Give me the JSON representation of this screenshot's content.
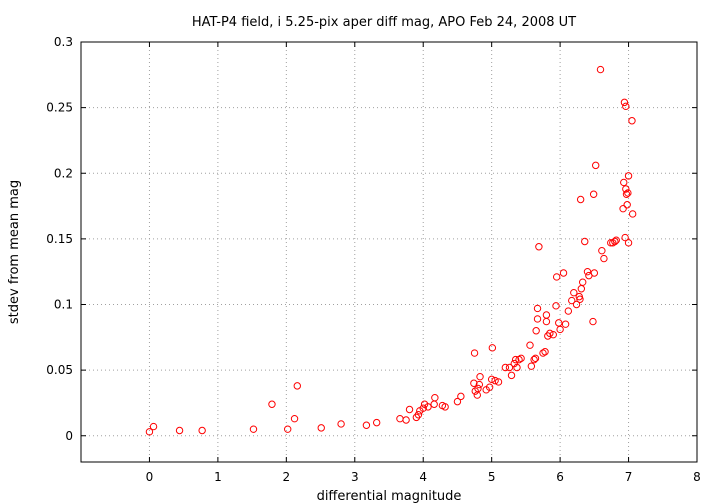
{
  "chart_data": {
    "type": "scatter",
    "title": "HAT-P4 field, i 5.25-pix aper diff mag, APO Feb 24, 2008 UT",
    "xlabel": "differential magnitude",
    "ylabel": "stdev from mean mag",
    "xlim": [
      -1,
      8
    ],
    "ylim": [
      -0.02,
      0.3
    ],
    "xticks": [
      0,
      1,
      2,
      3,
      4,
      5,
      6,
      7,
      8
    ],
    "yticks": [
      0,
      0.05,
      0.1,
      0.15,
      0.2,
      0.25,
      0.3
    ],
    "xtick_labels": [
      "0",
      "1",
      "2",
      "3",
      "4",
      "5",
      "6",
      "7",
      "8"
    ],
    "ytick_labels": [
      "0",
      "0.05",
      "0.1",
      "0.15",
      "0.2",
      "0.25",
      "0.3"
    ],
    "grid": true,
    "marker_color": "#ff0000",
    "series": [
      {
        "points": [
          [
            0.0,
            0.003
          ],
          [
            0.06,
            0.007
          ],
          [
            0.44,
            0.004
          ],
          [
            0.77,
            0.004
          ],
          [
            1.52,
            0.005
          ],
          [
            1.79,
            0.024
          ],
          [
            2.02,
            0.005
          ],
          [
            2.12,
            0.013
          ],
          [
            2.16,
            0.038
          ],
          [
            2.51,
            0.006
          ],
          [
            2.8,
            0.009
          ],
          [
            3.17,
            0.008
          ],
          [
            3.32,
            0.01
          ],
          [
            3.66,
            0.013
          ],
          [
            3.75,
            0.012
          ],
          [
            3.8,
            0.02
          ],
          [
            3.9,
            0.014
          ],
          [
            3.93,
            0.016
          ],
          [
            3.95,
            0.019
          ],
          [
            4.0,
            0.021
          ],
          [
            4.02,
            0.024
          ],
          [
            4.07,
            0.022
          ],
          [
            4.16,
            0.024
          ],
          [
            4.17,
            0.029
          ],
          [
            4.28,
            0.023
          ],
          [
            4.32,
            0.022
          ],
          [
            4.5,
            0.026
          ],
          [
            4.55,
            0.03
          ],
          [
            4.74,
            0.04
          ],
          [
            4.75,
            0.063
          ],
          [
            4.76,
            0.034
          ],
          [
            4.79,
            0.031
          ],
          [
            4.8,
            0.036
          ],
          [
            4.82,
            0.039
          ],
          [
            4.83,
            0.045
          ],
          [
            4.92,
            0.035
          ],
          [
            4.97,
            0.037
          ],
          [
            5.0,
            0.043
          ],
          [
            5.01,
            0.067
          ],
          [
            5.05,
            0.042
          ],
          [
            5.1,
            0.041
          ],
          [
            5.2,
            0.052
          ],
          [
            5.26,
            0.052
          ],
          [
            5.29,
            0.046
          ],
          [
            5.33,
            0.055
          ],
          [
            5.35,
            0.058
          ],
          [
            5.37,
            0.052
          ],
          [
            5.4,
            0.058
          ],
          [
            5.43,
            0.059
          ],
          [
            5.56,
            0.069
          ],
          [
            5.58,
            0.053
          ],
          [
            5.62,
            0.058
          ],
          [
            5.64,
            0.059
          ],
          [
            5.65,
            0.08
          ],
          [
            5.67,
            0.089
          ],
          [
            5.67,
            0.097
          ],
          [
            5.69,
            0.144
          ],
          [
            5.75,
            0.063
          ],
          [
            5.78,
            0.064
          ],
          [
            5.8,
            0.087
          ],
          [
            5.8,
            0.092
          ],
          [
            5.82,
            0.076
          ],
          [
            5.85,
            0.078
          ],
          [
            5.9,
            0.077
          ],
          [
            5.94,
            0.099
          ],
          [
            5.95,
            0.121
          ],
          [
            5.98,
            0.086
          ],
          [
            6.0,
            0.081
          ],
          [
            6.05,
            0.124
          ],
          [
            6.08,
            0.085
          ],
          [
            6.12,
            0.095
          ],
          [
            6.17,
            0.103
          ],
          [
            6.2,
            0.109
          ],
          [
            6.24,
            0.1
          ],
          [
            6.28,
            0.106
          ],
          [
            6.29,
            0.104
          ],
          [
            6.3,
            0.18
          ],
          [
            6.31,
            0.112
          ],
          [
            6.33,
            0.117
          ],
          [
            6.36,
            0.148
          ],
          [
            6.4,
            0.125
          ],
          [
            6.42,
            0.122
          ],
          [
            6.48,
            0.087
          ],
          [
            6.49,
            0.184
          ],
          [
            6.5,
            0.124
          ],
          [
            6.52,
            0.206
          ],
          [
            6.59,
            0.279
          ],
          [
            6.61,
            0.141
          ],
          [
            6.64,
            0.135
          ],
          [
            6.74,
            0.147
          ],
          [
            6.77,
            0.147
          ],
          [
            6.8,
            0.148
          ],
          [
            6.82,
            0.149
          ],
          [
            6.92,
            0.173
          ],
          [
            6.93,
            0.193
          ],
          [
            6.94,
            0.254
          ],
          [
            6.95,
            0.151
          ],
          [
            6.96,
            0.251
          ],
          [
            6.96,
            0.188
          ],
          [
            6.97,
            0.184
          ],
          [
            6.98,
            0.176
          ],
          [
            6.99,
            0.185
          ],
          [
            7.0,
            0.147
          ],
          [
            7.0,
            0.198
          ],
          [
            7.05,
            0.24
          ],
          [
            7.06,
            0.169
          ]
        ]
      }
    ]
  }
}
